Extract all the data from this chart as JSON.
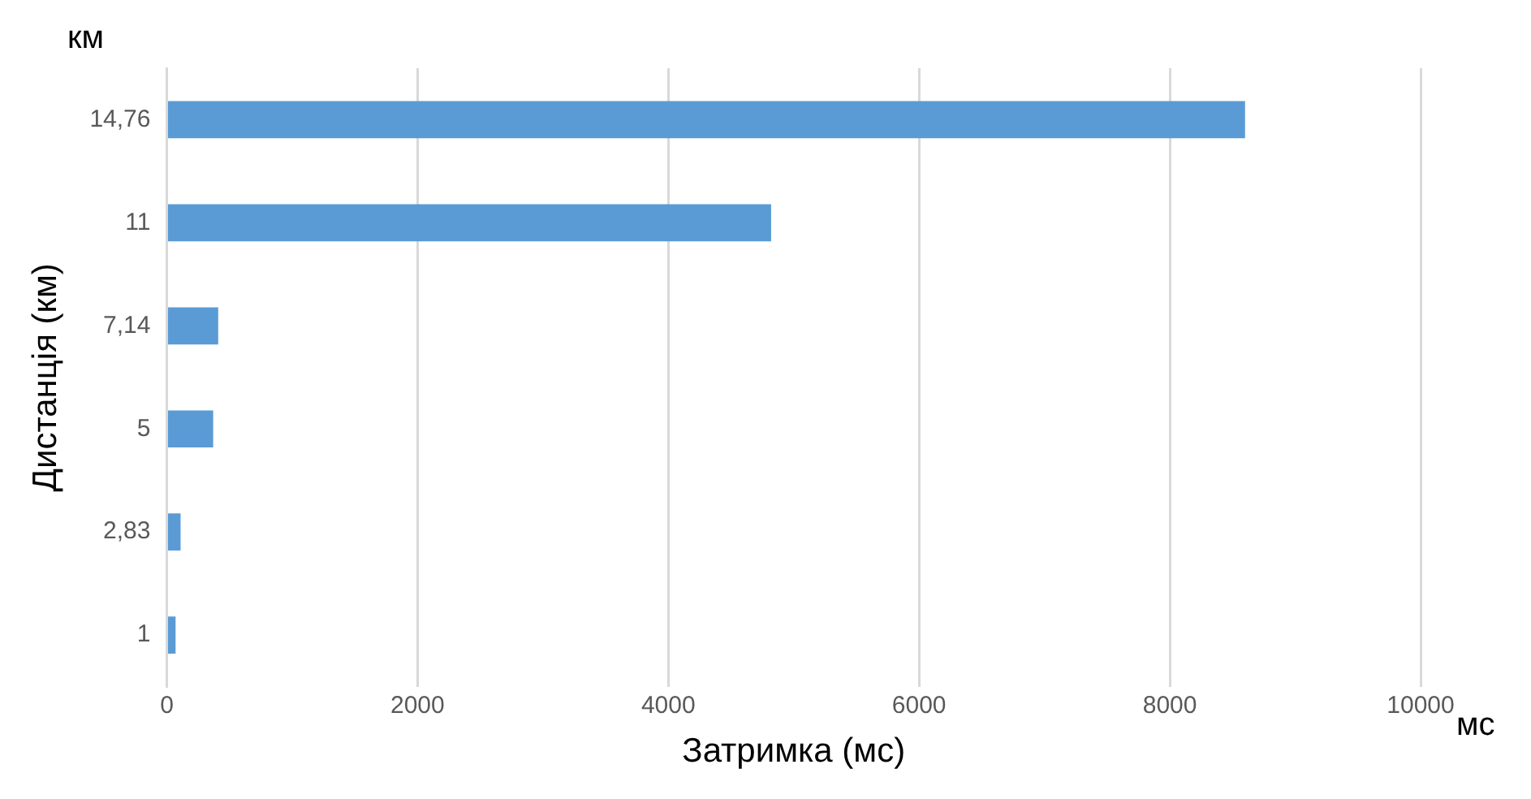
{
  "chart_data": {
    "type": "bar",
    "orientation": "horizontal",
    "categories": [
      "14,76",
      "11",
      "7,14",
      "5",
      "2,83",
      "1"
    ],
    "values": [
      8600,
      4820,
      410,
      370,
      110,
      70
    ],
    "color": "#5b9bd5",
    "xlim": [
      0,
      10000
    ],
    "xticks": [
      0,
      2000,
      4000,
      6000,
      8000,
      10000
    ],
    "grid": "x",
    "xlabel": "Затримка (мс)",
    "ylabel": "Дистанція (км)",
    "annotations": [
      "км",
      "мс"
    ]
  }
}
